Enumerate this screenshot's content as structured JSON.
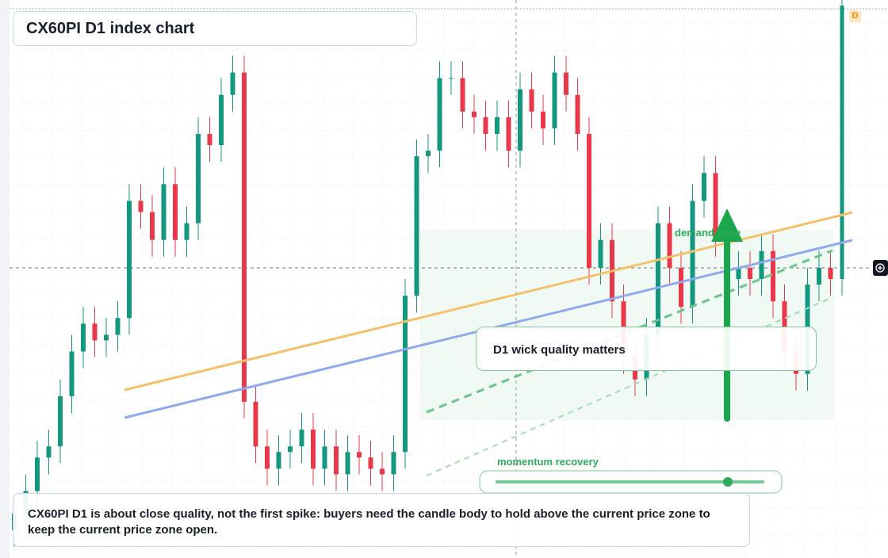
{
  "chart_data": {
    "type": "candlestick",
    "title": "CX60PI D1 index chart",
    "badge": "D",
    "annotations": {
      "zone": "demand zone",
      "wick": "D1 wick quality matters",
      "momentum": "momentum recovery",
      "note": "CX60PI D1 is about close quality, not the first spike: buyers need the candle body to hold above the current price zone to keep the current price zone open."
    },
    "up_color": "#13977f",
    "down_color": "#e8384a",
    "ylim": [
      0,
      100
    ],
    "open": [
      5,
      8,
      12,
      18,
      20,
      29,
      37,
      42,
      39,
      40,
      43,
      64,
      62,
      57,
      67,
      57,
      60,
      76,
      74,
      83,
      87,
      28,
      20,
      16,
      19,
      20,
      23,
      16,
      20,
      15,
      19,
      18,
      16,
      15,
      19,
      47,
      72,
      73,
      86,
      86,
      80,
      79,
      76,
      79,
      73,
      84,
      80,
      77,
      87,
      83,
      76,
      52,
      57,
      46,
      36,
      32,
      40,
      60,
      52,
      45,
      64,
      69,
      57,
      50,
      52,
      50,
      55,
      46,
      37,
      33,
      49,
      52,
      50
    ],
    "high": [
      11,
      15,
      21,
      23,
      32,
      40,
      45,
      45,
      43,
      46,
      67,
      67,
      65,
      70,
      70,
      63,
      79,
      79,
      86,
      90,
      90,
      31,
      23,
      22,
      23,
      26,
      26,
      23,
      23,
      22,
      22,
      21,
      19,
      22,
      50,
      75,
      76,
      89,
      89,
      89,
      83,
      82,
      82,
      82,
      87,
      87,
      83,
      90,
      90,
      86,
      79,
      60,
      60,
      49,
      39,
      43,
      63,
      63,
      55,
      67,
      72,
      72,
      60,
      55,
      55,
      58,
      58,
      49,
      40,
      52,
      55,
      55,
      100
    ],
    "low": [
      2,
      5,
      9,
      15,
      17,
      26,
      34,
      36,
      36,
      37,
      40,
      59,
      54,
      54,
      54,
      54,
      57,
      71,
      71,
      80,
      25,
      17,
      13,
      13,
      16,
      17,
      13,
      13,
      12,
      12,
      15,
      13,
      12,
      12,
      16,
      44,
      69,
      70,
      83,
      77,
      76,
      73,
      73,
      70,
      70,
      77,
      74,
      74,
      80,
      73,
      49,
      49,
      43,
      33,
      29,
      29,
      37,
      49,
      42,
      42,
      61,
      54,
      47,
      47,
      47,
      47,
      43,
      34,
      30,
      30,
      46,
      47,
      47
    ],
    "close": [
      8,
      12,
      18,
      20,
      29,
      37,
      42,
      39,
      40,
      43,
      64,
      62,
      57,
      67,
      57,
      60,
      76,
      74,
      83,
      87,
      28,
      20,
      16,
      19,
      20,
      23,
      16,
      20,
      15,
      19,
      18,
      16,
      15,
      19,
      47,
      72,
      73,
      86,
      86,
      80,
      79,
      76,
      79,
      73,
      84,
      80,
      77,
      87,
      83,
      76,
      52,
      57,
      46,
      36,
      32,
      40,
      60,
      52,
      45,
      64,
      69,
      57,
      50,
      52,
      50,
      55,
      46,
      37,
      33,
      49,
      52,
      50,
      99
    ]
  }
}
